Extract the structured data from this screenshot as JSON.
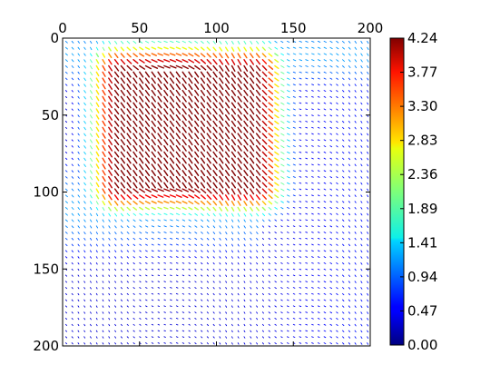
{
  "chart_data": {
    "type": "heatmap",
    "subtype": "quiver",
    "title": "",
    "xlabel": "",
    "ylabel": "",
    "x_axis_position": "top",
    "y_axis_inverted": true,
    "xlim": [
      0,
      200
    ],
    "ylim": [
      200,
      0
    ],
    "x_ticks": [
      "0",
      "50",
      "100",
      "150",
      "200"
    ],
    "y_ticks": [
      "0",
      "50",
      "100",
      "150",
      "200"
    ],
    "grid": false,
    "colormap": "jet",
    "color_range": [
      0.0,
      4.24
    ],
    "colorbar_ticks": [
      "0.00",
      "0.47",
      "0.94",
      "1.41",
      "1.89",
      "2.36",
      "2.83",
      "3.30",
      "3.77",
      "4.24"
    ],
    "grid_step": 4,
    "field": {
      "description": "rectangular high-magnitude region with smooth falloff",
      "region_x": [
        35,
        125
      ],
      "region_y": [
        20,
        95
      ],
      "peak_magnitude": 4.24,
      "orientation_deg_in_region": 55
    }
  }
}
